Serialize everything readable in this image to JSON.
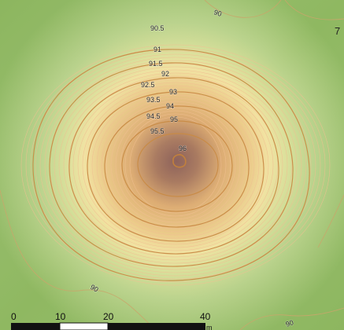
{
  "map": {
    "colors": {
      "background": "#ffffff",
      "outer_green": "#8fb861",
      "light_green": "#b9d28a",
      "yellow_green": "#d8df98",
      "yellow": "#f2e2a0",
      "light_orange": "#ebc987",
      "orange": "#ddac72",
      "brown": "#a97a60",
      "dark_brown": "#8d625b",
      "minor_contour": "#f0bf91",
      "major_contour": "#c98b45",
      "edge_contour": "#c9a66a"
    },
    "contour_labels": {
      "label_905": "90.5",
      "label_91": "91",
      "label_915": "91.5",
      "label_92": "92",
      "label_925": "92.5",
      "label_93": "93",
      "label_935": "93.5",
      "label_94": "94",
      "label_945": "94.5",
      "label_95": "95",
      "label_955": "95.5",
      "label_96": "96",
      "label_90_top": "90",
      "label_90_bottom_left": "90",
      "label_90_bottom_right": "90"
    },
    "edge_glyph": "7",
    "scale_bar": {
      "ticks": [
        "0",
        "10",
        "20",
        "40"
      ],
      "unit": "m"
    }
  }
}
